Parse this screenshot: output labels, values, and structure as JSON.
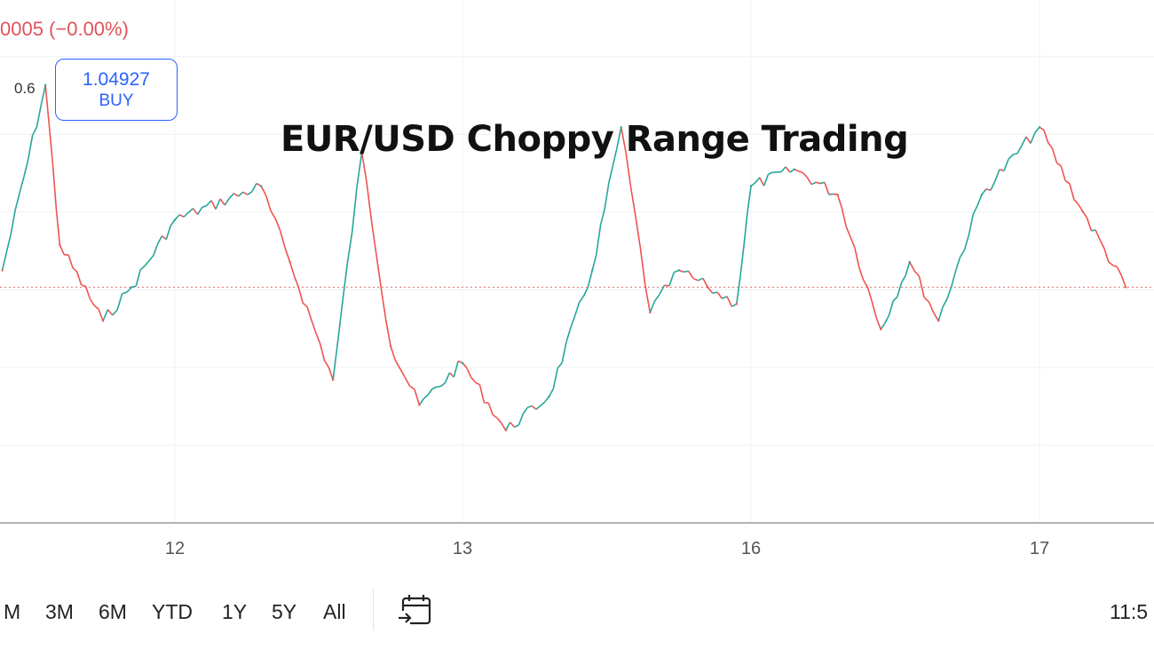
{
  "header": {
    "change_text": "0005 (−0.00%)",
    "spread": "0.6",
    "buy_price": "1.04927",
    "buy_label": "BUY"
  },
  "chart_data": {
    "type": "line",
    "title": "EUR/USD Choppy Range Trading",
    "x_ticks": [
      "12",
      "13",
      "16",
      "17"
    ],
    "x": [
      11.4,
      11.55,
      11.6,
      11.75,
      11.85,
      12.0,
      12.3,
      12.4,
      12.55,
      12.65,
      12.75,
      12.85,
      13.0,
      13.15,
      13.3,
      13.45,
      13.55,
      13.65,
      13.75,
      13.85,
      13.95,
      16.0,
      16.15,
      16.3,
      16.45,
      16.55,
      16.65,
      16.8,
      17.0,
      17.15,
      17.3
    ],
    "series": [
      {
        "values": [
          1.0485,
          1.0507,
          1.0488,
          1.0479,
          1.0483,
          1.0491,
          1.0495,
          1.0486,
          1.0472,
          1.0499,
          1.0476,
          1.0469,
          1.0474,
          1.0466,
          1.047,
          1.0485,
          1.0502,
          1.048,
          1.0485,
          1.0483,
          1.0481,
          1.0495,
          1.0497,
          1.0494,
          1.0478,
          1.0486,
          1.0479,
          1.0494,
          1.0502,
          1.0492,
          1.0483
        ]
      }
    ],
    "reference_line": 1.0483,
    "ylim": [
      1.0455,
      1.0515
    ],
    "grid": true
  },
  "ranges": [
    "M",
    "3M",
    "6M",
    "YTD",
    "1Y",
    "5Y",
    "All"
  ],
  "icons": {
    "date_range": "calendar-arrow-icon"
  },
  "time": "11:5",
  "colors": {
    "up": "#26a69a",
    "down": "#ef5350",
    "buy": "#2962ff",
    "reference": "#e57373",
    "grid": "#eef0f4"
  }
}
